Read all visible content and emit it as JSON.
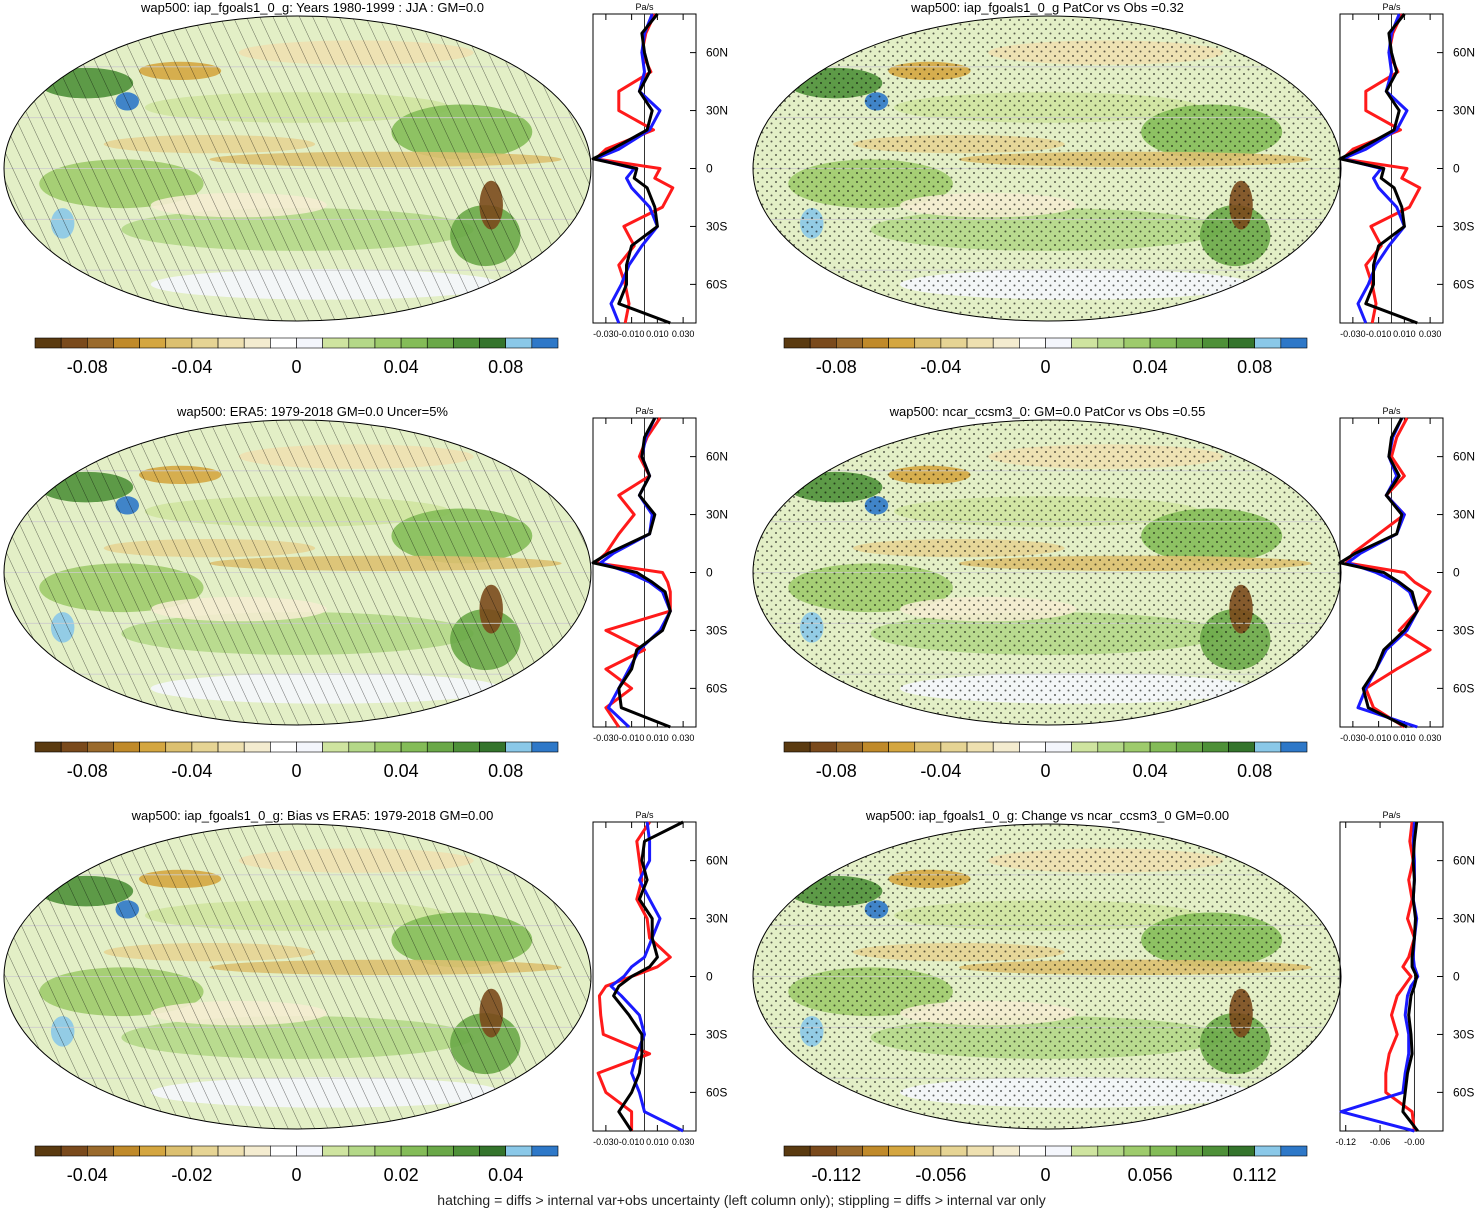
{
  "footer": "hatching = diffs > internal var+obs uncertainty (left column only); stippling = diffs > internal var only",
  "units": "Pa/s",
  "colors": {
    "line_model": "#ff1a1a",
    "line_obs": "#1a1aff",
    "line_ref": "#000000",
    "scale": [
      "#5a3a10",
      "#7a4a1c",
      "#9a6a2c",
      "#c08a2a",
      "#d4a640",
      "#dcc070",
      "#e6d494",
      "#eee0b0",
      "#f4ecd0",
      "#ffffff",
      "#f4f6fc",
      "#cfe4a0",
      "#b4d888",
      "#9ecb6c",
      "#84bc58",
      "#6aa848",
      "#4e9038",
      "#34742c",
      "#8ac8e8",
      "#2e78c8"
    ]
  },
  "chart_data": [
    {
      "type": "heatmap",
      "title": "wap500: iap_fgoals1_0_g: Years 1980-1999 : JJA : GM=0.0",
      "colorbar_ticks": [
        "-0.08",
        "-0.04",
        "0",
        "0.04",
        "0.08"
      ],
      "colorbar_range": [
        -0.1,
        0.1
      ],
      "pattern": "hatch",
      "profile": {
        "type": "line",
        "xlabel": "Pa/s",
        "xticks": [
          "-0.030",
          "-0.010",
          "0.010",
          "0.030"
        ],
        "xlim": [
          -0.04,
          0.04
        ],
        "yticks": [
          "60N",
          "30N",
          "0",
          "30S",
          "60S"
        ],
        "ylim": [
          -80,
          80
        ],
        "lat": [
          80,
          70,
          60,
          50,
          40,
          30,
          20,
          10,
          5,
          0,
          -5,
          -10,
          -20,
          -30,
          -40,
          -50,
          -60,
          -70,
          -80
        ],
        "series": [
          {
            "values": [
              0.008,
              0.001,
              -0.002,
              0.005,
              -0.02,
              -0.02,
              0.007,
              -0.03,
              -0.038,
              0.012,
              0.008,
              0.022,
              0.014,
              -0.016,
              -0.008,
              -0.02,
              -0.015,
              -0.012,
              -0.015
            ]
          },
          {
            "values": [
              0.006,
              0.0,
              -0.002,
              0.0,
              -0.004,
              0.012,
              0.004,
              -0.02,
              -0.038,
              -0.008,
              -0.014,
              -0.01,
              0.004,
              0.01,
              -0.002,
              -0.012,
              -0.018,
              -0.026,
              -0.02
            ]
          },
          {
            "values": [
              0.01,
              -0.002,
              0.0,
              0.004,
              -0.004,
              0.006,
              0.002,
              -0.025,
              -0.04,
              -0.006,
              -0.008,
              0.002,
              0.008,
              0.01,
              -0.01,
              -0.014,
              -0.014,
              -0.02,
              0.02
            ]
          }
        ]
      }
    },
    {
      "type": "heatmap",
      "title": "wap500: iap_fgoals1_0_g PatCor vs Obs =0.32",
      "colorbar_ticks": [
        "-0.08",
        "-0.04",
        "0",
        "0.04",
        "0.08"
      ],
      "colorbar_range": [
        -0.1,
        0.1
      ],
      "pattern": "stipple",
      "profile": {
        "type": "line",
        "xlabel": "Pa/s",
        "xticks": [
          "-0.030",
          "-0.010",
          "0.010",
          "0.030"
        ],
        "xlim": [
          -0.04,
          0.04
        ],
        "yticks": [
          "60N",
          "30N",
          "0",
          "30S",
          "60S"
        ],
        "ylim": [
          -80,
          80
        ],
        "lat": [
          80,
          70,
          60,
          50,
          40,
          30,
          20,
          10,
          5,
          0,
          -5,
          -10,
          -20,
          -30,
          -40,
          -50,
          -60,
          -70,
          -80
        ],
        "series": [
          {
            "values": [
              0.008,
              0.001,
              -0.002,
              0.005,
              -0.02,
              -0.02,
              0.007,
              -0.03,
              -0.038,
              0.012,
              0.008,
              0.022,
              0.014,
              -0.016,
              -0.008,
              -0.02,
              -0.015,
              -0.012,
              -0.015
            ]
          },
          {
            "values": [
              0.006,
              0.0,
              -0.002,
              0.0,
              -0.004,
              0.012,
              0.004,
              -0.02,
              -0.038,
              -0.008,
              -0.014,
              -0.01,
              0.004,
              0.01,
              -0.002,
              -0.012,
              -0.018,
              -0.026,
              -0.02
            ]
          },
          {
            "values": [
              0.01,
              -0.002,
              0.0,
              0.004,
              -0.004,
              0.006,
              0.002,
              -0.025,
              -0.04,
              -0.006,
              -0.008,
              0.002,
              0.008,
              0.01,
              -0.01,
              -0.014,
              -0.014,
              -0.02,
              0.02
            ]
          }
        ]
      }
    },
    {
      "type": "heatmap",
      "title": "wap500: ERA5: 1979-2018 GM=0.0 Uncer=5%",
      "colorbar_ticks": [
        "-0.08",
        "-0.04",
        "0",
        "0.04",
        "0.08"
      ],
      "colorbar_range": [
        -0.1,
        0.1
      ],
      "pattern": "hatch",
      "profile": {
        "type": "line",
        "xlabel": "Pa/s",
        "xticks": [
          "-0.030",
          "-0.010",
          "0.010",
          "0.030"
        ],
        "xlim": [
          -0.04,
          0.04
        ],
        "yticks": [
          "60N",
          "30N",
          "0",
          "30S",
          "60S"
        ],
        "ylim": [
          -80,
          80
        ],
        "lat": [
          80,
          70,
          60,
          50,
          40,
          30,
          20,
          10,
          5,
          0,
          -5,
          -10,
          -20,
          -30,
          -40,
          -50,
          -60,
          -70,
          -80
        ],
        "series": [
          {
            "values": [
              0.012,
              0.002,
              -0.004,
              0.004,
              -0.02,
              -0.008,
              -0.02,
              -0.03,
              -0.038,
              0.014,
              0.018,
              0.02,
              0.02,
              -0.03,
              0.0,
              -0.03,
              -0.01,
              -0.03,
              -0.02
            ]
          },
          {
            "values": [
              0.008,
              0.001,
              -0.002,
              0.004,
              -0.004,
              0.006,
              0.004,
              -0.024,
              -0.034,
              -0.012,
              0.004,
              0.014,
              0.02,
              0.012,
              -0.004,
              -0.012,
              -0.02,
              -0.028,
              -0.012
            ]
          },
          {
            "values": [
              0.008,
              0.0,
              -0.002,
              0.004,
              -0.004,
              0.008,
              0.004,
              -0.028,
              -0.04,
              -0.006,
              0.006,
              0.016,
              0.02,
              0.014,
              -0.006,
              -0.01,
              -0.02,
              -0.018,
              0.02
            ]
          }
        ]
      }
    },
    {
      "type": "heatmap",
      "title": "wap500: ncar_ccsm3_0: GM=0.0 PatCor vs Obs =0.55",
      "colorbar_ticks": [
        "-0.08",
        "-0.04",
        "0",
        "0.04",
        "0.08"
      ],
      "colorbar_range": [
        -0.1,
        0.1
      ],
      "pattern": "stipple",
      "profile": {
        "type": "line",
        "xlabel": "Pa/s",
        "xticks": [
          "-0.030",
          "-0.010",
          "0.010",
          "0.030"
        ],
        "xlim": [
          -0.04,
          0.04
        ],
        "yticks": [
          "60N",
          "30N",
          "0",
          "30S",
          "60S"
        ],
        "ylim": [
          -80,
          80
        ],
        "lat": [
          80,
          70,
          60,
          50,
          40,
          30,
          20,
          10,
          5,
          0,
          -5,
          -10,
          -20,
          -30,
          -40,
          -50,
          -60,
          -70,
          -80
        ],
        "series": [
          {
            "values": [
              0.012,
              0.004,
              0.0,
              0.01,
              -0.004,
              0.01,
              -0.01,
              -0.03,
              -0.035,
              0.01,
              0.018,
              0.03,
              0.02,
              0.006,
              0.03,
              0.004,
              -0.02,
              -0.014,
              0.01
            ]
          },
          {
            "values": [
              0.008,
              0.001,
              -0.002,
              0.004,
              -0.004,
              0.01,
              0.004,
              -0.024,
              -0.034,
              -0.012,
              0.004,
              0.014,
              0.02,
              0.012,
              -0.004,
              -0.012,
              -0.02,
              -0.026,
              0.02
            ]
          },
          {
            "values": [
              0.008,
              0.0,
              -0.002,
              0.006,
              -0.004,
              0.008,
              0.004,
              -0.028,
              -0.04,
              -0.006,
              0.006,
              0.016,
              0.02,
              0.01,
              -0.006,
              -0.012,
              -0.022,
              -0.018,
              0.012
            ]
          }
        ]
      }
    },
    {
      "type": "heatmap",
      "title": "wap500: iap_fgoals1_0_g: Bias vs ERA5: 1979-2018 GM=0.00",
      "colorbar_ticks": [
        "-0.04",
        "-0.02",
        "0",
        "0.02",
        "0.04"
      ],
      "colorbar_range": [
        -0.05,
        0.05
      ],
      "pattern": "hatch",
      "profile": {
        "type": "line",
        "xlabel": "Pa/s",
        "xticks": [
          "-0.030",
          "-0.010",
          "0.010",
          "0.030"
        ],
        "xlim": [
          -0.04,
          0.04
        ],
        "yticks": [
          "60N",
          "30N",
          "0",
          "30S",
          "60S"
        ],
        "ylim": [
          -80,
          80
        ],
        "lat": [
          80,
          70,
          60,
          50,
          40,
          30,
          20,
          10,
          5,
          0,
          -5,
          -10,
          -20,
          -30,
          -40,
          -50,
          -60,
          -70,
          -80
        ],
        "series": [
          {
            "values": [
              0.004,
              -0.006,
              -0.004,
              -0.002,
              -0.006,
              0.002,
              0.004,
              0.02,
              0.01,
              -0.01,
              -0.03,
              -0.035,
              -0.034,
              -0.032,
              0.004,
              -0.036,
              -0.03,
              -0.01,
              -0.01
            ]
          },
          {
            "values": [
              0.002,
              0.004,
              0.004,
              -0.004,
              0.004,
              0.012,
              0.006,
              0.0,
              -0.01,
              -0.016,
              -0.026,
              -0.018,
              -0.004,
              0.0,
              -0.006,
              -0.01,
              -0.004,
              0.0,
              0.03
            ]
          },
          {
            "values": [
              0.03,
              0.0,
              -0.002,
              0.002,
              -0.004,
              0.006,
              0.006,
              0.01,
              0.004,
              -0.01,
              -0.02,
              -0.024,
              -0.012,
              -0.002,
              -0.002,
              -0.004,
              -0.01,
              -0.02,
              -0.01
            ]
          }
        ]
      }
    },
    {
      "type": "heatmap",
      "title": "wap500: iap_fgoals1_0_g: Change vs ncar_ccsm3_0 GM=0.00",
      "colorbar_ticks": [
        "-0.112",
        "-0.056",
        "0",
        "0.056",
        "0.112"
      ],
      "colorbar_range": [
        -0.14,
        0.14
      ],
      "pattern": "stipple",
      "profile": {
        "type": "line",
        "xlabel": "Pa/s",
        "xticks": [
          "-0.12",
          "-0.06",
          "-0.00"
        ],
        "xlim": [
          -0.13,
          0.05
        ],
        "yticks": [
          "60N",
          "30N",
          "0",
          "30S",
          "60S"
        ],
        "ylim": [
          -80,
          80
        ],
        "lat": [
          80,
          70,
          60,
          50,
          40,
          30,
          20,
          10,
          5,
          0,
          -5,
          -10,
          -20,
          -30,
          -40,
          -50,
          -60,
          -70,
          -80
        ],
        "series": [
          {
            "values": [
              -0.004,
              -0.008,
              -0.002,
              -0.01,
              -0.004,
              -0.012,
              0.0,
              -0.01,
              -0.02,
              -0.006,
              -0.018,
              -0.03,
              -0.04,
              -0.03,
              -0.044,
              -0.05,
              -0.05,
              -0.004,
              0.0
            ]
          },
          {
            "values": [
              0.0,
              -0.002,
              0.0,
              0.0,
              -0.002,
              0.004,
              0.0,
              -0.002,
              0.0,
              0.006,
              -0.006,
              -0.012,
              -0.016,
              -0.01,
              -0.01,
              -0.016,
              -0.02,
              -0.128,
              0.0
            ]
          },
          {
            "values": [
              0.004,
              0.0,
              -0.002,
              0.0,
              -0.002,
              0.002,
              0.0,
              -0.004,
              -0.004,
              0.004,
              0.0,
              -0.006,
              -0.01,
              -0.006,
              -0.004,
              -0.012,
              -0.016,
              -0.02,
              0.006
            ]
          }
        ]
      }
    }
  ]
}
